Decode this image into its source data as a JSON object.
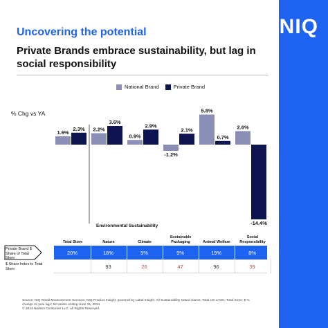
{
  "brand": {
    "logo": "NIQ",
    "accent": "#1e62f0",
    "stripe_color": "#1e62f0"
  },
  "header": {
    "kicker": "Uncovering the potential",
    "kicker_color": "#1e62f0",
    "headline": "Private Brands embrace sustainability, but lag in social responsibility"
  },
  "legend": {
    "national": "National Brand",
    "private": "Private Brand",
    "national_color": "#8c8fb5",
    "private_color": "#0d1450"
  },
  "chart_data": {
    "type": "bar",
    "ylabel": "% Chg vs YA",
    "categories": [
      "Total Store",
      "Nature",
      "Climate",
      "Sustainable Packaging",
      "Animal Welfare",
      "Social Responsibility"
    ],
    "series": [
      {
        "name": "National Brand",
        "values": [
          1.6,
          2.2,
          0.9,
          -1.2,
          5.8,
          2.6
        ],
        "labels": [
          "1.6%",
          "2.2%",
          "0.9%",
          "-1.2%",
          "5.8%",
          "2.6%"
        ]
      },
      {
        "name": "Private Brand",
        "values": [
          2.3,
          3.6,
          2.9,
          2.1,
          0.7,
          -14.4
        ],
        "labels": [
          "2.3%",
          "3.6%",
          "2.9%",
          "2.1%",
          "0.7%",
          "-14.4%"
        ]
      }
    ],
    "group_label": "Environmental Sustainability",
    "grid": false,
    "legend_position": "top-center"
  },
  "table": {
    "columns": [
      "Total Store",
      "Nature",
      "Climate",
      "Sustainable Packaging",
      "Animal Welfare",
      "Social Responsibility"
    ],
    "share_row_label": "Private Brand $ Share of Total Store",
    "share_values": [
      "20%",
      "18%",
      "5%",
      "9%",
      "19%",
      "8%"
    ],
    "index_row_label": "$ Share Index to Total Store",
    "index_values": [
      "",
      "93",
      "26",
      "47",
      "96",
      "39"
    ],
    "index_colors": [
      "#333333",
      "#333333",
      "#e03a2f",
      "#e03a2f",
      "#333333",
      "#e03a2f"
    ]
  },
  "footer": {
    "source": "Source: NIQ Retail Measurement Services, NIQ Product Insight, powered by Label Insight. All Sustainability stated claims; Total US xAOC; Total Store; $ % change vs year ago; 52 weeks ending June 15, 2024",
    "copyright": "© 2024 Nielsen Consumer LLC. All Rights Reserved."
  }
}
